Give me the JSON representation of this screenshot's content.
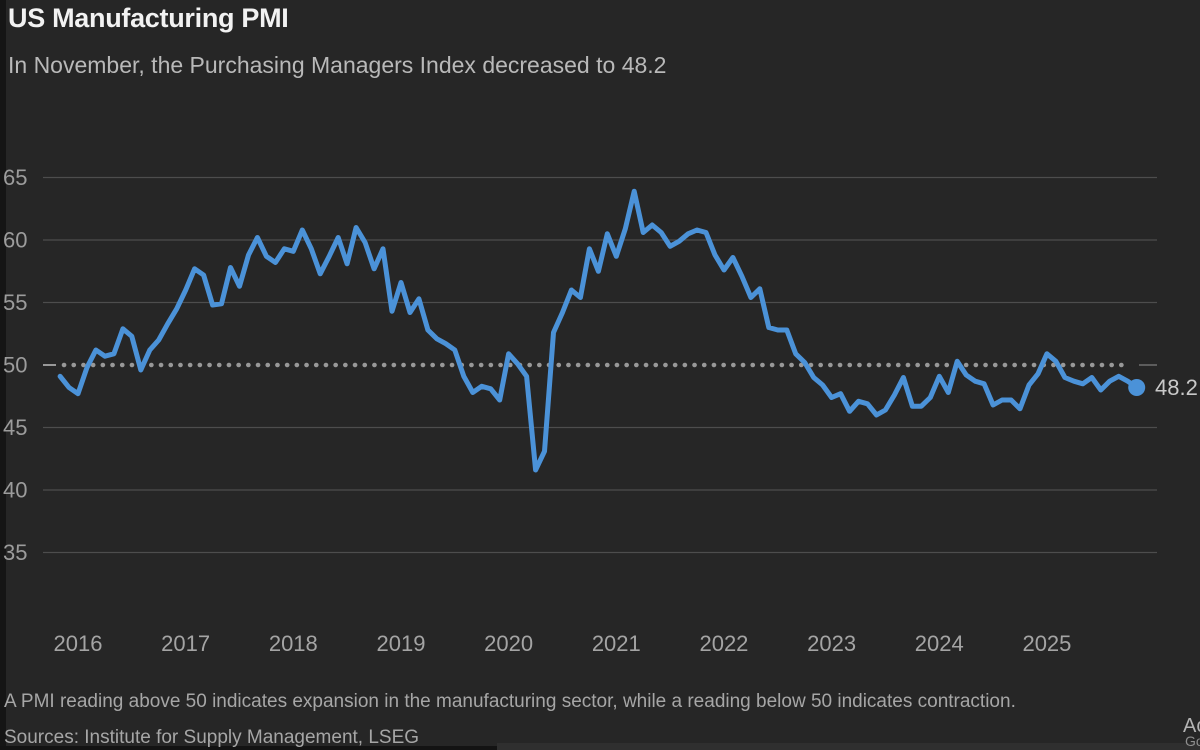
{
  "header": {
    "title": "US Manufacturing PMI",
    "subtitle": "In November, the Purchasing Managers Index decreased to 48.2"
  },
  "footer": {
    "note": "A PMI reading above 50 indicates expansion in the manufacturing sector, while a reading below 50 indicates contraction.",
    "sources": "Sources: Institute for Supply Management, LSEG",
    "corner_fragment_line1": "Ac",
    "corner_fragment_line2": "Go"
  },
  "chart_data": {
    "type": "line",
    "title": "US Manufacturing PMI",
    "series_name": "US Manufacturing PMI (monthly)",
    "frequency": "monthly",
    "start_month": "2015-11",
    "end_month": "2025-11",
    "x_tick_labels": [
      "2016",
      "2017",
      "2018",
      "2019",
      "2020",
      "2021",
      "2022",
      "2023",
      "2024",
      "2025"
    ],
    "y_ticks": [
      35,
      40,
      45,
      50,
      55,
      60,
      65
    ],
    "ylim": [
      33.5,
      66.5
    ],
    "reference_line": 50,
    "grid": "horizontal",
    "legend": "none",
    "end_value": 48.2,
    "end_label": "48.2",
    "monthly_values": [
      49.1,
      48.2,
      47.7,
      49.8,
      51.2,
      50.7,
      50.9,
      52.9,
      52.3,
      49.6,
      51.2,
      52.0,
      53.3,
      54.5,
      56.0,
      57.7,
      57.2,
      54.8,
      54.9,
      57.8,
      56.3,
      58.8,
      60.2,
      58.7,
      58.2,
      59.3,
      59.1,
      60.8,
      59.3,
      57.3,
      58.7,
      60.2,
      58.1,
      61.0,
      59.8,
      57.7,
      59.3,
      54.3,
      56.6,
      54.2,
      55.3,
      52.8,
      52.1,
      51.7,
      51.2,
      49.1,
      47.8,
      48.3,
      48.1,
      47.2,
      50.9,
      50.1,
      49.1,
      41.6,
      43.1,
      52.6,
      54.2,
      56.0,
      55.4,
      59.3,
      57.5,
      60.5,
      58.7,
      60.9,
      63.9,
      60.6,
      61.2,
      60.6,
      59.5,
      59.9,
      60.5,
      60.8,
      60.6,
      58.8,
      57.6,
      58.6,
      57.1,
      55.4,
      56.1,
      53.0,
      52.8,
      52.8,
      50.9,
      50.2,
      49.0,
      48.4,
      47.4,
      47.7,
      46.3,
      47.1,
      46.9,
      46.0,
      46.4,
      47.6,
      49.0,
      46.7,
      46.7,
      47.4,
      49.1,
      47.8,
      50.3,
      49.2,
      48.7,
      48.5,
      46.8,
      47.2,
      47.2,
      46.5,
      48.4,
      49.3,
      50.9,
      50.3,
      49.0,
      48.7,
      48.5,
      49.0,
      48.0,
      48.7,
      49.1,
      48.7,
      48.2
    ],
    "colors": {
      "background": "#262626",
      "line": "#4b92d8",
      "grid": "#4d4d4d",
      "reference_dots": "#989898",
      "reference_stub_right": "#6e6e6e",
      "y_axis_label": "#9c9c9c",
      "x_axis_label": "#a4a4a4",
      "title": "#f2f2f2",
      "subtitle": "#b9b9b9",
      "footnote": "#a6a6a6",
      "end_label": "#c9c9c9"
    }
  }
}
